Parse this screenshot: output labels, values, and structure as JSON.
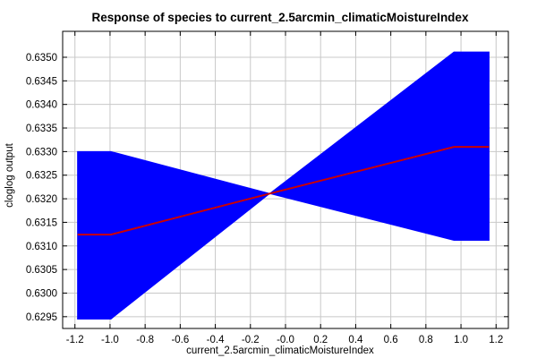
{
  "chart_data": {
    "type": "line",
    "title": "Response of species to current_2.5arcmin_climaticMoistureIndex",
    "xlabel": "current_2.5arcmin_climaticMoistureIndex",
    "ylabel": "cloglog output",
    "xlim": [
      -1.27,
      1.27
    ],
    "ylim": [
      0.62925,
      0.63555
    ],
    "x_ticks": [
      -1.2,
      -1.0,
      -0.8,
      -0.6,
      -0.4,
      -0.2,
      -0.0,
      0.2,
      0.4,
      0.6,
      0.8,
      1.0,
      1.2
    ],
    "x_tick_labels": [
      "-1.2",
      "-1.0",
      "-0.8",
      "-0.6",
      "-0.4",
      "-0.2",
      "-0.0",
      "0.2",
      "0.4",
      "0.6",
      "0.8",
      "1.0",
      "1.2"
    ],
    "y_ticks": [
      0.6295,
      0.63,
      0.6305,
      0.631,
      0.6315,
      0.632,
      0.6325,
      0.633,
      0.6335,
      0.634,
      0.6345,
      0.635
    ],
    "y_tick_labels": [
      "0.6295",
      "0.6300",
      "0.6305",
      "0.6310",
      "0.6315",
      "0.6320",
      "0.6325",
      "0.6330",
      "0.6335",
      "0.6340",
      "0.6345",
      "0.6350"
    ],
    "grid": true,
    "series": [
      {
        "role": "mean",
        "color": "#cc0000",
        "x": [
          -1.185,
          -0.995,
          -0.09,
          0.96,
          1.16
        ],
        "y": [
          0.63124,
          0.63124,
          0.63211,
          0.6331,
          0.6331
        ]
      }
    ],
    "band": {
      "color": "#0000ff",
      "x": [
        -1.185,
        -0.995,
        -0.09,
        0.96,
        1.16
      ],
      "lower": [
        0.62945,
        0.62945,
        0.63211,
        0.63112,
        0.63112
      ],
      "upper": [
        0.633,
        0.633,
        0.63211,
        0.63511,
        0.63511
      ]
    }
  }
}
